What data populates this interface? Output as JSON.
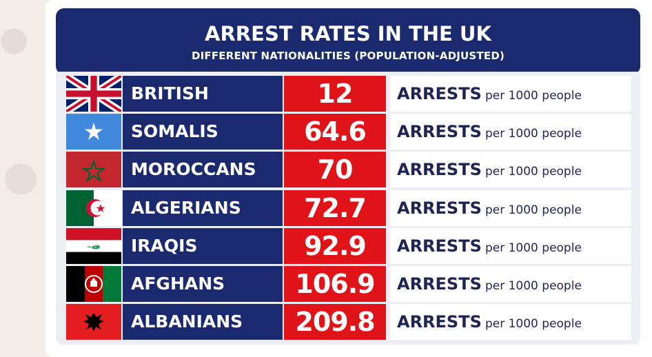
{
  "chart_data": {
    "type": "table",
    "title": "ARREST RATES IN THE UK",
    "subtitle": "DIFFERENT NATIONALITIES (POPULATION-ADJUSTED)",
    "unit_main": "ARRESTS",
    "unit_detail": "per 1000 people",
    "categories": [
      "BRITISH",
      "SOMALIS",
      "MOROCCANS",
      "ALGERIANS",
      "IRAQIS",
      "AFGHANS",
      "ALBANIANS"
    ],
    "values": [
      "12",
      "64.6",
      "70",
      "72.7",
      "92.9",
      "106.9",
      "209.8"
    ],
    "flags": [
      "united-kingdom-flag-icon",
      "somalia-flag-icon",
      "morocco-flag-icon",
      "algeria-flag-icon",
      "iraq-flag-icon",
      "afghanistan-flag-icon",
      "albania-flag-icon"
    ]
  },
  "colors": {
    "navy": "#1b2a6e",
    "red": "#e01418",
    "white": "#ffffff"
  }
}
